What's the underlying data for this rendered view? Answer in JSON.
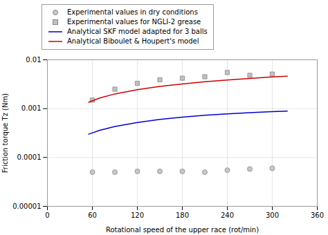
{
  "chart_data": {
    "type": "scatter",
    "xlabel": "Rotational speed of the upper race (rot/min)",
    "ylabel": "Friction torque Tz (Nm)",
    "log": "y",
    "grid": true,
    "legend": "top",
    "xlim": [
      0,
      360
    ],
    "xticks": [
      0,
      60,
      120,
      180,
      240,
      300,
      360
    ],
    "ylim": [
      1e-05,
      0.01
    ],
    "yticks": [
      1e-05,
      0.0001,
      0.001,
      0.01
    ],
    "series": [
      {
        "name": "Experimental values in dry conditions",
        "type": "scatter",
        "marker": "circle",
        "color": "#c8c8c8",
        "x": [
          60,
          90,
          120,
          150,
          180,
          210,
          240,
          270,
          300
        ],
        "values": [
          5e-05,
          5e-05,
          5.2e-05,
          5.2e-05,
          5.2e-05,
          5e-05,
          5.5e-05,
          5.8e-05,
          6e-05
        ]
      },
      {
        "name": "Experimental values for NGLI-2 grease",
        "type": "scatter",
        "marker": "square",
        "color": "#c0c0c0",
        "x": [
          60,
          90,
          120,
          150,
          180,
          210,
          240,
          270,
          300
        ],
        "values": [
          0.0015,
          0.0025,
          0.0033,
          0.0039,
          0.0042,
          0.0045,
          0.0055,
          0.0048,
          0.0051
        ]
      },
      {
        "name": "Analytical SKF model adapted for 3 balls",
        "type": "line",
        "line_style": "solid",
        "color": "#0000cc",
        "x": [
          55,
          70,
          90,
          120,
          150,
          180,
          210,
          240,
          270,
          300,
          320
        ],
        "values": [
          0.0003,
          0.00036,
          0.00043,
          0.00052,
          0.0006,
          0.00067,
          0.00073,
          0.00078,
          0.00083,
          0.00087,
          0.00089
        ]
      },
      {
        "name": "Analytical Biboulet & Houpert's model",
        "type": "line",
        "line_style": "solid",
        "color": "#cc0000",
        "x": [
          55,
          70,
          90,
          120,
          150,
          180,
          210,
          240,
          270,
          300,
          320
        ],
        "values": [
          0.00135,
          0.00165,
          0.002,
          0.00245,
          0.00285,
          0.0032,
          0.00355,
          0.00385,
          0.00415,
          0.00445,
          0.0046
        ]
      }
    ]
  }
}
